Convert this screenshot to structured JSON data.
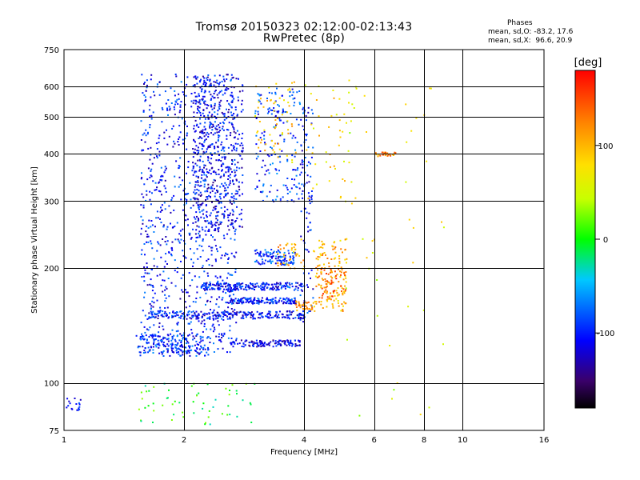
{
  "header": {
    "title": "Tromsø 20150323 02:12:00-02:13:43",
    "subtitle": "RwPretec (8p)",
    "stats_title": "Phases",
    "stats_line1": "mean, sd,O: -83.2, 17.6",
    "stats_line2": "mean, sd,X:  96.6, 20.9"
  },
  "colorbar": {
    "label": "[deg]",
    "min": -180,
    "max": 180,
    "ticks": [
      {
        "value": 100,
        "label": "100"
      },
      {
        "value": 0,
        "label": "0"
      },
      {
        "value": -100,
        "label": "-100"
      }
    ]
  },
  "chart_data": {
    "type": "scatter",
    "title": "Tromsø 20150323 02:12:00-02:13:43",
    "subtitle": "RwPretec (8p)",
    "xlabel": "Frequency [MHz]",
    "ylabel": "Stationary phase Virtual Height [km]",
    "x_scale": "log",
    "y_scale": "log",
    "xlim": [
      1,
      16
    ],
    "ylim": [
      75,
      750
    ],
    "grid": true,
    "x_ticks": [
      1,
      2,
      4,
      6,
      8,
      10,
      16
    ],
    "x_tick_labels": [
      "1",
      "2",
      "4",
      "6",
      "8",
      "10",
      "16"
    ],
    "y_ticks": [
      75,
      100,
      200,
      300,
      400,
      500,
      600,
      750
    ],
    "y_tick_labels": [
      "75",
      "100",
      "200",
      "300",
      "400",
      "500",
      "600",
      "750"
    ],
    "color_encoding": "phase (deg)",
    "clusters": [
      {
        "name": "",
        "f": [
          1.55,
          2.7
        ],
        "h": [
          120,
          650
        ],
        "phase": -100,
        "count": 900,
        "kind": "column"
      },
      {
        "name": "",
        "f": [
          2.1,
          2.8
        ],
        "h": [
          250,
          650
        ],
        "phase": -110,
        "count": 500,
        "kind": "column"
      },
      {
        "name": "",
        "f": [
          1.5,
          2.3
        ],
        "h": [
          118,
          135
        ],
        "phase": -95,
        "count": 180,
        "kind": "band"
      },
      {
        "name": "",
        "f": [
          1.6,
          4.0
        ],
        "h": [
          148,
          155
        ],
        "phase": -105,
        "count": 260,
        "kind": "band"
      },
      {
        "name": "",
        "f": [
          2.2,
          4.0
        ],
        "h": [
          176,
          184
        ],
        "phase": -100,
        "count": 220,
        "kind": "band"
      },
      {
        "name": "",
        "f": [
          2.6,
          3.8
        ],
        "h": [
          162,
          168
        ],
        "phase": -100,
        "count": 150,
        "kind": "band"
      },
      {
        "name": "",
        "f": [
          2.6,
          3.9
        ],
        "h": [
          125,
          130
        ],
        "phase": -115,
        "count": 120,
        "kind": "band"
      },
      {
        "name": "",
        "f": [
          3.0,
          3.8
        ],
        "h": [
          205,
          225
        ],
        "phase": -90,
        "count": 110,
        "kind": "cloud"
      },
      {
        "name": "",
        "f": [
          3.0,
          4.0
        ],
        "h": [
          300,
          600
        ],
        "phase": -90,
        "count": 180,
        "kind": "cloud"
      },
      {
        "name": "",
        "f": [
          3.9,
          4.2
        ],
        "h": [
          140,
          550
        ],
        "phase": -100,
        "count": 90,
        "kind": "column"
      },
      {
        "name": "",
        "f": [
          4.2,
          5.1
        ],
        "h": [
          155,
          240
        ],
        "phase": 100,
        "count": 130,
        "kind": "cloud"
      },
      {
        "name": "",
        "f": [
          4.4,
          5.1
        ],
        "h": [
          165,
          200
        ],
        "phase": 130,
        "count": 60,
        "kind": "cloud"
      },
      {
        "name": "",
        "f": [
          3.8,
          4.3
        ],
        "h": [
          155,
          165
        ],
        "phase": 110,
        "count": 40,
        "kind": "cloud"
      },
      {
        "name": "",
        "f": [
          3.4,
          4.0
        ],
        "h": [
          200,
          240
        ],
        "phase": 105,
        "count": 40,
        "kind": "cloud"
      },
      {
        "name": "",
        "f": [
          3.0,
          3.8
        ],
        "h": [
          380,
          620
        ],
        "phase": 95,
        "count": 60,
        "kind": "cloud"
      },
      {
        "name": "",
        "f": [
          4.0,
          5.4
        ],
        "h": [
          300,
          620
        ],
        "phase": 80,
        "count": 50,
        "kind": "cloud"
      },
      {
        "name": "",
        "f": [
          6.0,
          6.8
        ],
        "h": [
          395,
          405
        ],
        "phase": 120,
        "count": 25,
        "kind": "cloud"
      },
      {
        "name": "",
        "f": [
          1.0,
          1.1
        ],
        "h": [
          85,
          92
        ],
        "phase": -95,
        "count": 20,
        "kind": "cloud"
      },
      {
        "name": "",
        "f": [
          1.5,
          3.0
        ],
        "h": [
          78,
          100
        ],
        "phase": 0,
        "count": 60,
        "kind": "cloud"
      },
      {
        "name": "",
        "f": [
          5.0,
          9.0
        ],
        "h": [
          80,
          650
        ],
        "phase": 60,
        "count": 40,
        "kind": "cloud"
      }
    ]
  }
}
